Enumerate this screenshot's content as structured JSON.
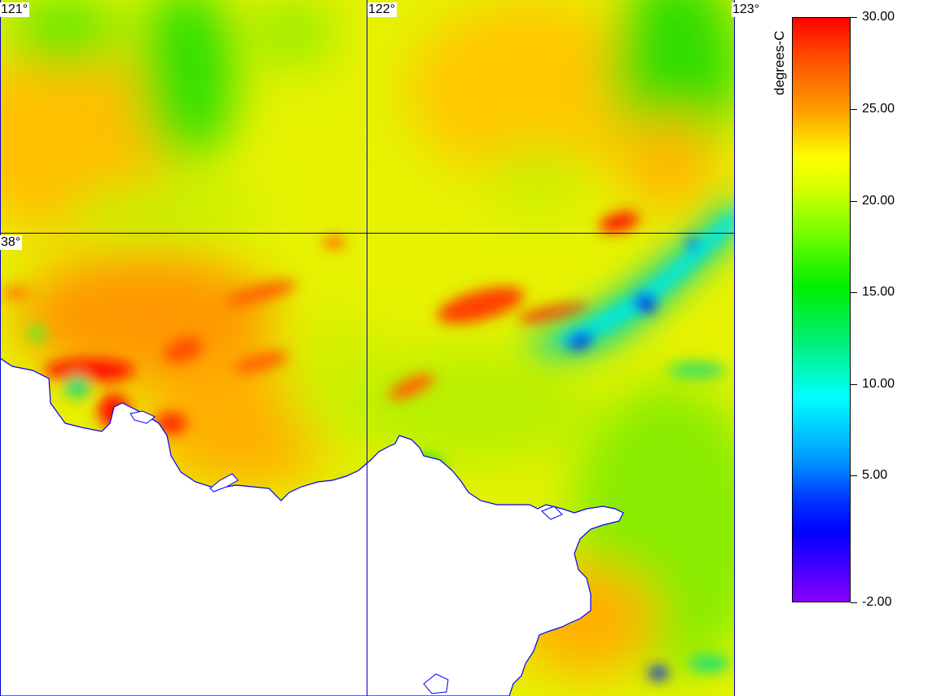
{
  "map": {
    "grid_labels": {
      "lon_121": "121°",
      "lon_122": "122°",
      "lon_123": "123°",
      "lat_38": "38°"
    },
    "grid_color": "#0000cc",
    "coast_color": "#0000ff",
    "land_color": "#ffffff"
  },
  "legend": {
    "title": "degrees-C",
    "ticks": [
      "30.00",
      "25.00",
      "20.00",
      "15.00",
      "10.00",
      "5.00",
      "-2.00"
    ],
    "max": 30,
    "min": -2
  }
}
